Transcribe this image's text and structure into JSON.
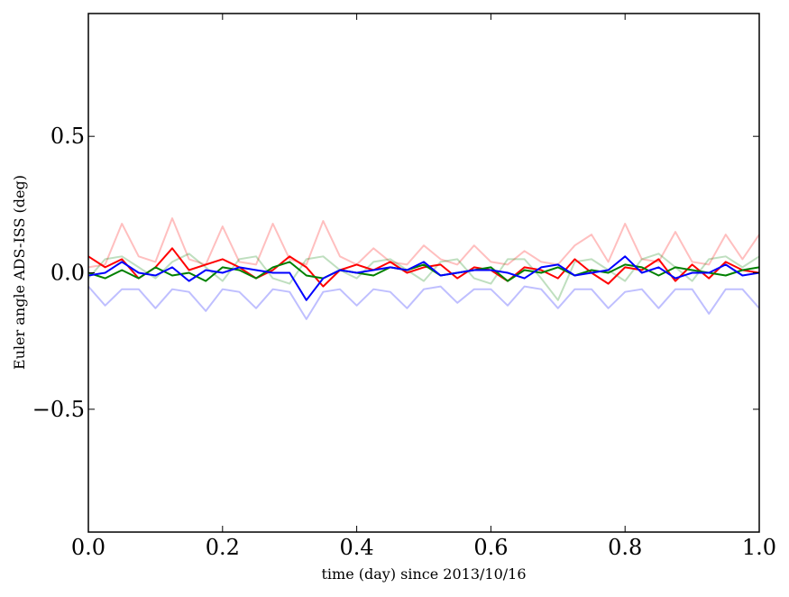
{
  "chart_data": {
    "type": "line",
    "title": "",
    "xlabel": "time (day) since 2013/10/16",
    "ylabel": "Euler angle ADS-ISS (deg)",
    "xlim": [
      0.0,
      1.0
    ],
    "ylim": [
      -0.95,
      0.95
    ],
    "x_ticks": [
      0.0,
      0.2,
      0.4,
      0.6,
      0.8,
      1.0
    ],
    "x_tick_labels": [
      "0.0",
      "0.2",
      "0.4",
      "0.6",
      "0.8",
      "1.0"
    ],
    "y_ticks": [
      0.5,
      0.0,
      -0.5
    ],
    "y_tick_labels": [
      "0.5",
      "0.0",
      "−0.5"
    ],
    "grid": false,
    "legend": "none",
    "x": [
      0.0,
      0.025,
      0.05,
      0.075,
      0.1,
      0.125,
      0.15,
      0.175,
      0.2,
      0.225,
      0.25,
      0.275,
      0.3,
      0.325,
      0.35,
      0.375,
      0.4,
      0.425,
      0.45,
      0.475,
      0.5,
      0.525,
      0.55,
      0.575,
      0.6,
      0.625,
      0.65,
      0.675,
      0.7,
      0.725,
      0.75,
      0.775,
      0.8,
      0.825,
      0.85,
      0.875,
      0.9,
      0.925,
      0.95,
      0.975,
      1.0
    ],
    "series": [
      {
        "color": "#ff0000",
        "opacity": 0.25,
        "values": [
          0.02,
          0.03,
          0.18,
          0.06,
          0.04,
          0.2,
          0.05,
          0.03,
          0.17,
          0.04,
          0.03,
          0.18,
          0.05,
          0.03,
          0.19,
          0.06,
          0.03,
          0.09,
          0.04,
          0.03,
          0.1,
          0.05,
          0.03,
          0.1,
          0.04,
          0.03,
          0.08,
          0.04,
          0.03,
          0.1,
          0.14,
          0.04,
          0.18,
          0.05,
          0.04,
          0.15,
          0.04,
          0.03,
          0.14,
          0.05,
          0.14
        ]
      },
      {
        "color": "#008000",
        "opacity": 0.25,
        "values": [
          -0.02,
          0.05,
          0.06,
          0.02,
          -0.02,
          0.04,
          0.07,
          0.02,
          -0.03,
          0.05,
          0.06,
          -0.02,
          -0.04,
          0.05,
          0.06,
          0.01,
          -0.02,
          0.04,
          0.05,
          0.01,
          -0.03,
          0.04,
          0.05,
          -0.02,
          -0.04,
          0.05,
          0.05,
          -0.02,
          -0.1,
          0.04,
          0.05,
          0.01,
          -0.03,
          0.05,
          0.07,
          0.02,
          -0.03,
          0.05,
          0.06,
          0.02,
          0.06
        ]
      },
      {
        "color": "#0000ff",
        "opacity": 0.25,
        "values": [
          -0.05,
          -0.12,
          -0.06,
          -0.06,
          -0.13,
          -0.06,
          -0.07,
          -0.14,
          -0.06,
          -0.07,
          -0.13,
          -0.06,
          -0.07,
          -0.17,
          -0.07,
          -0.06,
          -0.12,
          -0.06,
          -0.07,
          -0.13,
          -0.06,
          -0.05,
          -0.11,
          -0.06,
          -0.06,
          -0.12,
          -0.05,
          -0.06,
          -0.13,
          -0.06,
          -0.06,
          -0.13,
          -0.07,
          -0.06,
          -0.13,
          -0.06,
          -0.06,
          -0.15,
          -0.06,
          -0.06,
          -0.13
        ]
      },
      {
        "color": "#ff0000",
        "opacity": 1.0,
        "values": [
          0.06,
          0.02,
          0.05,
          -0.02,
          0.02,
          0.09,
          0.01,
          0.03,
          0.05,
          0.02,
          -0.02,
          0.01,
          0.06,
          0.02,
          -0.05,
          0.01,
          0.03,
          0.01,
          0.04,
          0.0,
          0.02,
          0.03,
          -0.02,
          0.02,
          0.01,
          -0.03,
          0.02,
          0.01,
          -0.02,
          0.05,
          0.0,
          -0.04,
          0.02,
          0.01,
          0.05,
          -0.03,
          0.03,
          -0.02,
          0.04,
          0.01,
          0.0
        ]
      },
      {
        "color": "#008000",
        "opacity": 1.0,
        "values": [
          0.0,
          -0.02,
          0.01,
          -0.02,
          0.02,
          -0.01,
          0.0,
          -0.03,
          0.02,
          0.01,
          -0.02,
          0.02,
          0.04,
          -0.01,
          -0.02,
          0.01,
          0.0,
          -0.01,
          0.02,
          0.01,
          0.03,
          -0.01,
          0.0,
          0.01,
          0.02,
          -0.03,
          0.01,
          0.0,
          0.02,
          -0.01,
          0.01,
          0.0,
          0.03,
          0.02,
          -0.01,
          0.02,
          0.01,
          0.0,
          -0.01,
          0.01,
          0.02
        ]
      },
      {
        "color": "#0000ff",
        "opacity": 1.0,
        "values": [
          -0.01,
          0.0,
          0.04,
          0.0,
          -0.01,
          0.02,
          -0.03,
          0.01,
          0.0,
          0.02,
          0.01,
          0.0,
          0.0,
          -0.1,
          -0.02,
          0.01,
          0.0,
          0.01,
          0.02,
          0.01,
          0.04,
          -0.01,
          0.0,
          0.01,
          0.01,
          0.0,
          -0.02,
          0.02,
          0.03,
          -0.01,
          0.0,
          0.01,
          0.06,
          0.0,
          0.02,
          -0.02,
          0.0,
          0.0,
          0.03,
          -0.01,
          0.0
        ]
      }
    ]
  }
}
